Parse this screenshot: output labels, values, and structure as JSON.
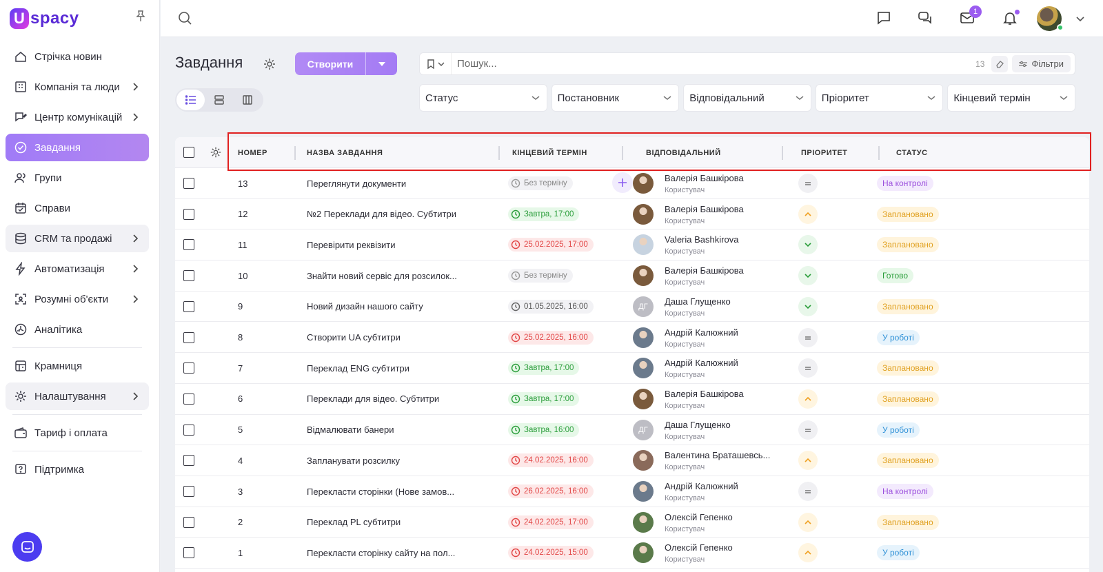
{
  "app": {
    "logo_letter": "U",
    "logo_text": "spacy"
  },
  "sidebar": {
    "items": [
      {
        "label": "Стрічка новин",
        "icon": "home-icon",
        "chevron": false
      },
      {
        "label": "Компанія та люди",
        "icon": "building-icon",
        "chevron": true
      },
      {
        "label": "Центр комунікацій",
        "icon": "chat-edit-icon",
        "chevron": true
      },
      {
        "label": "Завдання",
        "icon": "check-circle-icon",
        "chevron": false,
        "active": true
      },
      {
        "label": "Групи",
        "icon": "users-icon",
        "chevron": false
      },
      {
        "label": "Справи",
        "icon": "calendar-check-icon",
        "chevron": false
      },
      {
        "label": "CRM та продажі",
        "icon": "stack-icon",
        "chevron": true,
        "shaded": true
      },
      {
        "label": "Автоматизація",
        "icon": "lightning-icon",
        "chevron": true
      },
      {
        "label": "Розумні об'єкти",
        "icon": "scan-icon",
        "chevron": true
      },
      {
        "label": "Аналітика",
        "icon": "chart-icon",
        "chevron": false
      },
      {
        "label": "Крамниця",
        "icon": "store-icon",
        "chevron": false
      },
      {
        "label": "Налаштування",
        "icon": "gear-icon",
        "chevron": true,
        "shaded": true
      },
      {
        "label": "Тариф і оплата",
        "icon": "wallet-icon",
        "chevron": false
      },
      {
        "label": "Підтримка",
        "icon": "help-icon",
        "chevron": false
      }
    ]
  },
  "topbar": {
    "mail_badge": "1"
  },
  "page": {
    "title": "Завдання",
    "create_label": "Створити",
    "search_placeholder": "Пошук...",
    "search_count": "13",
    "filters_label": "Фільтри",
    "filters": [
      "Статус",
      "Постановник",
      "Відповідальний",
      "Пріоритет",
      "Кінцевий термін"
    ]
  },
  "table": {
    "headers": {
      "number": "НОМЕР",
      "name": "НАЗВА ЗАВДАННЯ",
      "deadline": "КІНЦЕВИЙ ТЕРМІН",
      "assignee": "ВІДПОВІДАЛЬНИЙ",
      "priority": "ПРІОРИТЕТ",
      "status": "СТАТУС"
    },
    "rows": [
      {
        "number": "13",
        "name": "Переглянути документи",
        "deadline": "Без терміну",
        "deadline_style": "none",
        "assignee": "Валерія Башкірова",
        "role": "Користувач",
        "avatar_color": "#7a5a3c",
        "priority": "equal",
        "status": "На контролі",
        "status_style": "control"
      },
      {
        "number": "12",
        "name": "№2 Переклади для відео. Субтитри",
        "deadline": "Завтра, 17:00",
        "deadline_style": "green",
        "assignee": "Валерія Башкірова",
        "role": "Користувач",
        "avatar_color": "#7a5a3c",
        "priority": "up",
        "status": "Заплановано",
        "status_style": "planned"
      },
      {
        "number": "11",
        "name": "Перевірити реквізити",
        "deadline": "25.02.2025, 17:00",
        "deadline_style": "red",
        "assignee": "Valeria Bashkirova",
        "role": "Користувач",
        "avatar_color": "#c7d3e0",
        "priority": "down",
        "status": "Заплановано",
        "status_style": "planned"
      },
      {
        "number": "10",
        "name": "Знайти новий сервіс для розсилок...",
        "deadline": "Без терміну",
        "deadline_style": "none",
        "assignee": "Валерія Башкірова",
        "role": "Користувач",
        "avatar_color": "#7a5a3c",
        "priority": "down",
        "status": "Готово",
        "status_style": "done"
      },
      {
        "number": "9",
        "name": "Новий дизайн нашого сайту",
        "deadline": "01.05.2025, 16:00",
        "deadline_style": "gray",
        "assignee": "Даша Глущенко",
        "role": "Користувач",
        "avatar_initials": "ДГ",
        "avatar_color": "#bdbdc4",
        "priority": "down",
        "status": "Заплановано",
        "status_style": "planned"
      },
      {
        "number": "8",
        "name": "Створити UA субтитри",
        "deadline": "25.02.2025, 16:00",
        "deadline_style": "red",
        "assignee": "Андрій Калюжний",
        "role": "Користувач",
        "avatar_color": "#6b7a8c",
        "priority": "equal",
        "status": "У роботі",
        "status_style": "work"
      },
      {
        "number": "7",
        "name": "Переклад ENG субтитри",
        "deadline": "Завтра, 17:00",
        "deadline_style": "green",
        "assignee": "Андрій Калюжний",
        "role": "Користувач",
        "avatar_color": "#6b7a8c",
        "priority": "equal",
        "status": "Заплановано",
        "status_style": "planned"
      },
      {
        "number": "6",
        "name": "Переклади для відео. Субтитри",
        "deadline": "Завтра, 17:00",
        "deadline_style": "green",
        "assignee": "Валерія Башкірова",
        "role": "Користувач",
        "avatar_color": "#7a5a3c",
        "priority": "up",
        "status": "Заплановано",
        "status_style": "planned"
      },
      {
        "number": "5",
        "name": "Відмалювати банери",
        "deadline": "Завтра, 16:00",
        "deadline_style": "green",
        "assignee": "Даша Глущенко",
        "role": "Користувач",
        "avatar_initials": "ДГ",
        "avatar_color": "#bdbdc4",
        "priority": "equal",
        "status": "У роботі",
        "status_style": "work"
      },
      {
        "number": "4",
        "name": "Запланувати розсилку",
        "deadline": "24.02.2025, 16:00",
        "deadline_style": "red",
        "assignee": "Валентина Браташевсь...",
        "role": "Користувач",
        "avatar_color": "#8a6a5a",
        "priority": "up",
        "status": "Заплановано",
        "status_style": "planned"
      },
      {
        "number": "3",
        "name": "Перекласти сторінки (Нове замов...",
        "deadline": "26.02.2025, 16:00",
        "deadline_style": "red",
        "assignee": "Андрій Калюжний",
        "role": "Користувач",
        "avatar_color": "#6b7a8c",
        "priority": "equal",
        "status": "На контролі",
        "status_style": "control"
      },
      {
        "number": "2",
        "name": "Переклад PL субтитри",
        "deadline": "24.02.2025, 17:00",
        "deadline_style": "red",
        "assignee": "Олексій Гепенко",
        "role": "Користувач",
        "avatar_color": "#5a7a4a",
        "priority": "up",
        "status": "Заплановано",
        "status_style": "planned"
      },
      {
        "number": "1",
        "name": "Перекласти сторінку сайту на пол...",
        "deadline": "24.02.2025, 15:00",
        "deadline_style": "red",
        "assignee": "Олексій Гепенко",
        "role": "Користувач",
        "avatar_color": "#5a7a4a",
        "priority": "up",
        "status": "У роботі",
        "status_style": "work"
      }
    ]
  }
}
